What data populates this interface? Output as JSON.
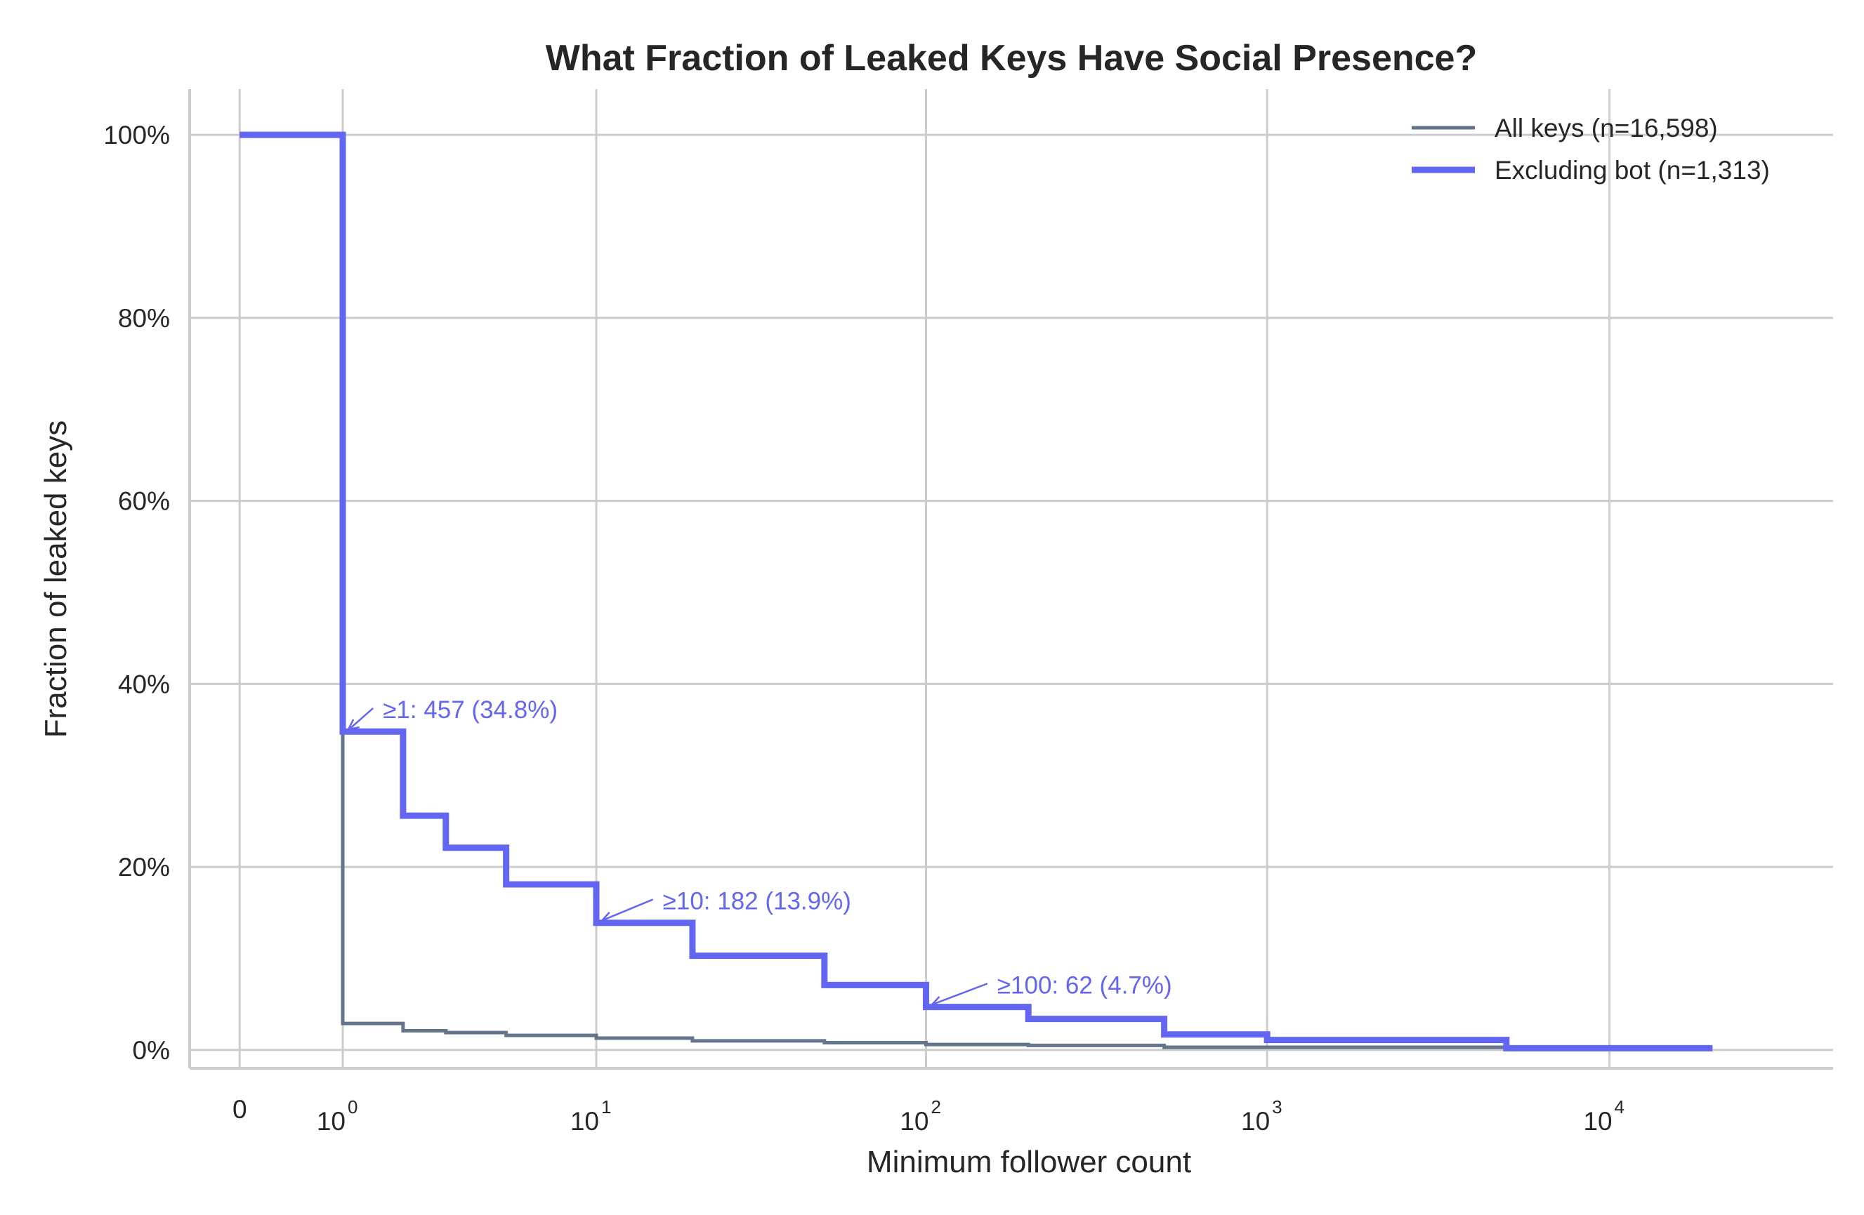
{
  "chart_data": {
    "type": "line",
    "step": "post",
    "title": "What Fraction of Leaked Keys Have Social Presence?",
    "xlabel": "Minimum follower count",
    "ylabel": "Fraction of leaked keys",
    "x_scale": "symlog",
    "xlim": [
      -0.4,
      45000
    ],
    "ylim": [
      -0.02,
      1.05
    ],
    "grid": true,
    "legend_position": "top-right",
    "x_ticks": [
      {
        "value": 0,
        "base": "0",
        "exp": ""
      },
      {
        "value": 1,
        "base": "10",
        "exp": "0"
      },
      {
        "value": 10,
        "base": "10",
        "exp": "1"
      },
      {
        "value": 100,
        "base": "10",
        "exp": "2"
      },
      {
        "value": 1000,
        "base": "10",
        "exp": "3"
      },
      {
        "value": 10000,
        "base": "10",
        "exp": "4"
      }
    ],
    "y_ticks": [
      {
        "value": 0,
        "label": "0%"
      },
      {
        "value": 0.2,
        "label": "20%"
      },
      {
        "value": 0.4,
        "label": "40%"
      },
      {
        "value": 0.6,
        "label": "60%"
      },
      {
        "value": 0.8,
        "label": "80%"
      },
      {
        "value": 1.0,
        "label": "100%"
      }
    ],
    "x": [
      0,
      1,
      2,
      3,
      5,
      10,
      20,
      50,
      100,
      200,
      500,
      1000,
      5000,
      20000
    ],
    "series": [
      {
        "name": "All keys (n=16,598)",
        "color": "#64748b",
        "line_width": 5,
        "values": [
          1.0,
          0.029,
          0.021,
          0.019,
          0.016,
          0.013,
          0.01,
          0.008,
          0.006,
          0.005,
          0.003,
          0.003,
          0.002,
          0.002
        ]
      },
      {
        "name": "Excluding bot (n=1,313)",
        "color": "#6366f1",
        "line_width": 9,
        "values": [
          1.0,
          0.348,
          0.256,
          0.221,
          0.181,
          0.139,
          0.103,
          0.071,
          0.047,
          0.034,
          0.017,
          0.011,
          0.002,
          0.002
        ]
      }
    ],
    "annotations": [
      {
        "text": "≥1: 457 (34.8%)",
        "x": 1,
        "y": 0.348,
        "text_x": 1.62,
        "text_y": 0.372,
        "color": "#6366f1"
      },
      {
        "text": "≥10: 182 (13.9%)",
        "x": 10,
        "y": 0.139,
        "text_x": 16.2,
        "text_y": 0.163,
        "color": "#6366f1"
      },
      {
        "text": "≥100: 62 (4.7%)",
        "x": 100,
        "y": 0.047,
        "text_x": 162,
        "text_y": 0.071,
        "color": "#6366f1"
      }
    ]
  }
}
